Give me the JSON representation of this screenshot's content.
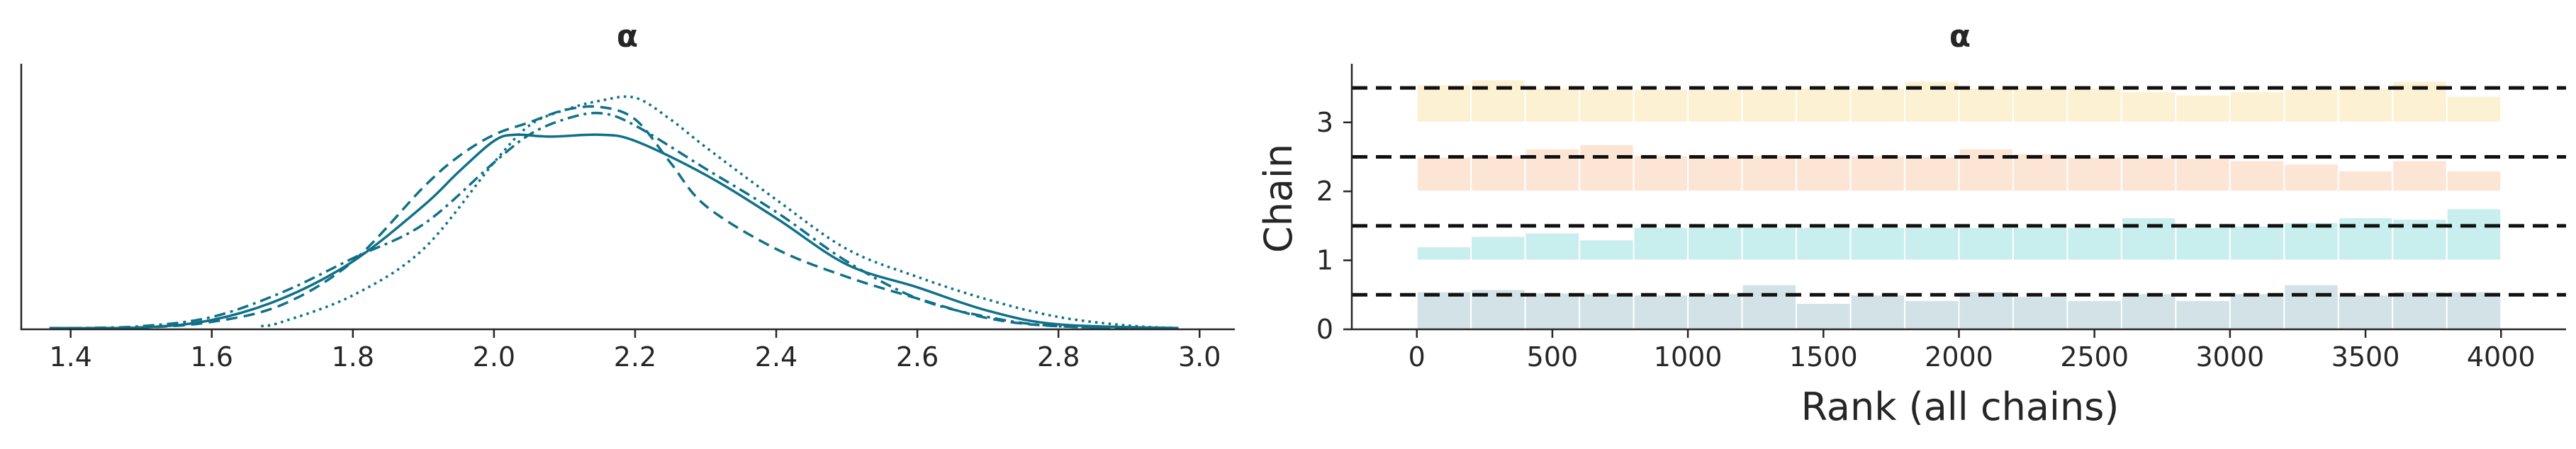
{
  "chart_data": [
    {
      "type": "line",
      "title": "α",
      "xlabel": "",
      "ylabel": "",
      "xlim": [
        1.33,
        3.05
      ],
      "ylim": [
        0,
        4.3
      ],
      "xticks": [
        "1.4",
        "1.6",
        "1.8",
        "2.0",
        "2.2",
        "2.4",
        "2.6",
        "2.8",
        "3.0"
      ],
      "yticks_visible": false,
      "grid": false,
      "color": "#0f7089",
      "series": [
        {
          "style": "solid",
          "x": [
            1.37,
            1.5,
            1.6,
            1.7,
            1.8,
            1.9,
            1.95,
            2.0,
            2.03,
            2.08,
            2.15,
            2.2,
            2.3,
            2.4,
            2.5,
            2.6,
            2.7,
            2.8,
            2.97
          ],
          "y": [
            0.02,
            0.03,
            0.15,
            0.5,
            1.1,
            2.0,
            2.55,
            3.05,
            3.15,
            3.12,
            3.15,
            3.05,
            2.5,
            1.8,
            1.05,
            0.68,
            0.3,
            0.08,
            0.02
          ]
        },
        {
          "style": "dashed",
          "x": [
            1.37,
            1.5,
            1.6,
            1.7,
            1.8,
            1.9,
            1.95,
            2.0,
            2.05,
            2.1,
            2.15,
            2.2,
            2.25,
            2.3,
            2.4,
            2.5,
            2.6,
            2.7,
            2.8,
            2.97
          ],
          "y": [
            0.02,
            0.03,
            0.12,
            0.4,
            1.1,
            2.3,
            2.8,
            3.15,
            3.35,
            3.55,
            3.6,
            3.4,
            2.7,
            2.0,
            1.3,
            0.85,
            0.5,
            0.18,
            0.05,
            0.02
          ]
        },
        {
          "style": "dashdot",
          "x": [
            1.4,
            1.5,
            1.6,
            1.7,
            1.8,
            1.9,
            2.0,
            2.05,
            2.1,
            2.15,
            2.2,
            2.3,
            2.4,
            2.5,
            2.6,
            2.7,
            2.8,
            2.97
          ],
          "y": [
            0.02,
            0.05,
            0.2,
            0.6,
            1.15,
            1.7,
            2.7,
            3.15,
            3.4,
            3.5,
            3.3,
            2.6,
            1.9,
            1.1,
            0.5,
            0.2,
            0.05,
            0.02
          ]
        },
        {
          "style": "dotted",
          "x": [
            1.67,
            1.7,
            1.8,
            1.9,
            2.0,
            2.05,
            2.1,
            2.15,
            2.2,
            2.25,
            2.3,
            2.4,
            2.5,
            2.6,
            2.7,
            2.8,
            2.9,
            2.97
          ],
          "y": [
            0.05,
            0.12,
            0.55,
            1.3,
            2.7,
            3.3,
            3.55,
            3.7,
            3.75,
            3.4,
            2.95,
            2.1,
            1.3,
            0.85,
            0.48,
            0.2,
            0.06,
            0.02
          ]
        }
      ]
    },
    {
      "type": "bar",
      "title": "α",
      "xlabel": "Rank (all chains)",
      "ylabel": "Chain",
      "xlim": [
        -240,
        4240
      ],
      "ylim": [
        0,
        3.85
      ],
      "xticks": [
        "0",
        "500",
        "1000",
        "1500",
        "2000",
        "2500",
        "3000",
        "3500",
        "4000"
      ],
      "yticks": [
        "0",
        "1",
        "2",
        "3"
      ],
      "grid": false,
      "bin_width": 200,
      "reference_line_height": 0.5,
      "chains": [
        {
          "chain": 0,
          "color": "#d2e2e6",
          "heights": [
            0.55,
            0.58,
            0.53,
            0.52,
            0.5,
            0.52,
            0.65,
            0.38,
            0.5,
            0.42,
            0.55,
            0.48,
            0.42,
            0.52,
            0.42,
            0.52,
            0.65,
            0.5,
            0.55,
            0.55
          ]
        },
        {
          "chain": 1,
          "color": "#c8eeee",
          "heights": [
            0.2,
            0.35,
            0.4,
            0.3,
            0.48,
            0.48,
            0.48,
            0.48,
            0.48,
            0.48,
            0.48,
            0.48,
            0.48,
            0.62,
            0.48,
            0.5,
            0.55,
            0.62,
            0.6,
            0.75
          ]
        },
        {
          "chain": 2,
          "color": "#fde5d5",
          "heights": [
            0.5,
            0.52,
            0.62,
            0.68,
            0.52,
            0.5,
            0.52,
            0.5,
            0.52,
            0.5,
            0.62,
            0.55,
            0.5,
            0.5,
            0.48,
            0.45,
            0.4,
            0.3,
            0.45,
            0.3
          ]
        },
        {
          "chain": 3,
          "color": "#fdf1d3",
          "heights": [
            0.55,
            0.62,
            0.5,
            0.48,
            0.48,
            0.48,
            0.48,
            0.5,
            0.5,
            0.6,
            0.5,
            0.5,
            0.5,
            0.45,
            0.4,
            0.45,
            0.48,
            0.5,
            0.6,
            0.38
          ]
        }
      ]
    }
  ]
}
